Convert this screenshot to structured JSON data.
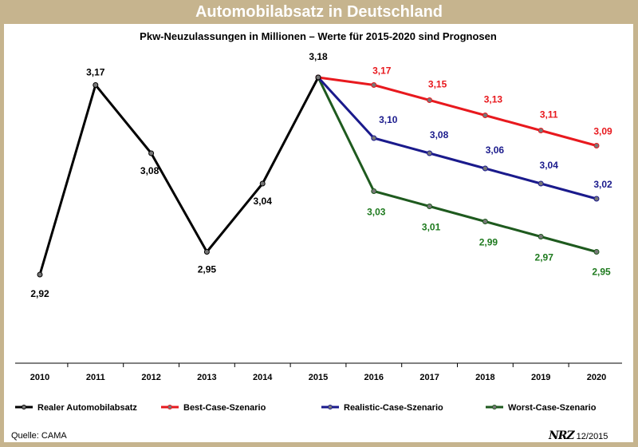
{
  "header": {
    "title": "Automobilabsatz in Deutschland"
  },
  "footer": {
    "source": "Quelle: CAMA",
    "brand": "NRZ",
    "date": "12/2015"
  },
  "chart_data": {
    "type": "line",
    "title": "",
    "subtitle": "Pkw-Neuzulassungen in Millionen – Werte für 2015-2020 sind Prognosen",
    "xlabel": "",
    "ylabel": "",
    "categories": [
      "2010",
      "2011",
      "2012",
      "2013",
      "2014",
      "2015",
      "2016",
      "2017",
      "2018",
      "2019",
      "2020"
    ],
    "ylim": [
      2.85,
      3.25
    ],
    "grid": false,
    "legend_position": "bottom",
    "series": [
      {
        "name": "Realer Automobilabsatz",
        "color": "#000000",
        "x": [
          "2010",
          "2011",
          "2012",
          "2013",
          "2014",
          "2015"
        ],
        "values": [
          2.92,
          3.17,
          3.08,
          2.95,
          3.04,
          3.18
        ],
        "labels": [
          "2,92",
          "3,17",
          "3,08",
          "2,95",
          "3,04",
          "3,18"
        ]
      },
      {
        "name": "Best-Case-Szenario",
        "color": "#e8191e",
        "x": [
          "2015",
          "2016",
          "2017",
          "2018",
          "2019",
          "2020"
        ],
        "values": [
          3.18,
          3.17,
          3.15,
          3.13,
          3.11,
          3.09
        ],
        "labels": [
          "",
          "3,17",
          "3,15",
          "3,13",
          "3,11",
          "3,09"
        ]
      },
      {
        "name": "Realistic-Case-Szenario",
        "color": "#1a1a8c",
        "x": [
          "2015",
          "2016",
          "2017",
          "2018",
          "2019",
          "2020"
        ],
        "values": [
          3.18,
          3.1,
          3.08,
          3.06,
          3.04,
          3.02
        ],
        "labels": [
          "",
          "3,10",
          "3,08",
          "3,06",
          "3,04",
          "3,02"
        ]
      },
      {
        "name": "Worst-Case-Szenario",
        "color": "#1e5a1e",
        "label_color": "#1e7a1e",
        "x": [
          "2015",
          "2016",
          "2017",
          "2018",
          "2019",
          "2020"
        ],
        "values": [
          3.18,
          3.03,
          3.01,
          2.99,
          2.97,
          2.95
        ],
        "labels": [
          "",
          "3,03",
          "3,01",
          "2,99",
          "2,97",
          "2,95"
        ]
      }
    ]
  }
}
